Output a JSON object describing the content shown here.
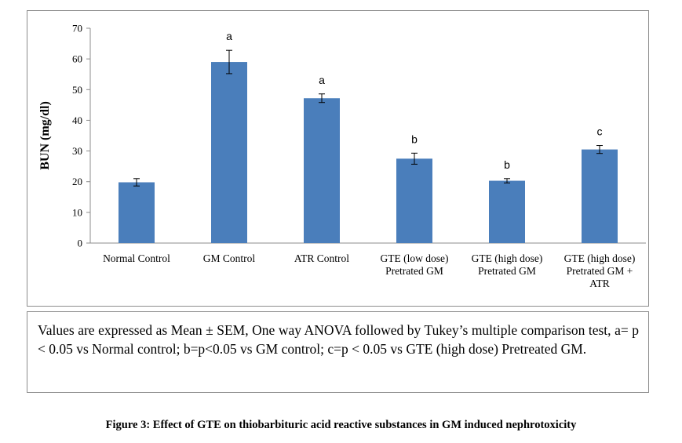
{
  "chart_data": {
    "type": "bar",
    "categories": [
      [
        "Normal Control"
      ],
      [
        "GM Control"
      ],
      [
        "ATR Control"
      ],
      [
        "GTE (low dose)",
        "Pretrated GM"
      ],
      [
        "GTE (high dose)",
        "Pretrated GM"
      ],
      [
        "GTE (high dose)",
        "Pretrated GM +",
        "ATR"
      ]
    ],
    "values": [
      19.8,
      59.0,
      47.2,
      27.5,
      20.3,
      30.5
    ],
    "errors": [
      1.2,
      3.8,
      1.4,
      1.8,
      0.7,
      1.3
    ],
    "significance": [
      "",
      "a",
      "a",
      "b",
      "b",
      "c"
    ],
    "ylabel": "BUN (mg/dl)",
    "ylim": [
      0,
      70
    ],
    "yticks": [
      0,
      10,
      20,
      30,
      40,
      50,
      60,
      70
    ],
    "bar_color": "#4a7ebb",
    "grid": false
  },
  "note": "Values are expressed as Mean ± SEM, One way ANOVA followed by Tukey’s multiple comparison test, a= p < 0.05 vs Normal control; b=p<0.05 vs GM control; c=p < 0.05 vs GTE (high dose) Pretreated GM.",
  "caption": "Figure 3: Effect of GTE on thiobarbituric acid reactive substances in GM induced nephrotoxicity"
}
